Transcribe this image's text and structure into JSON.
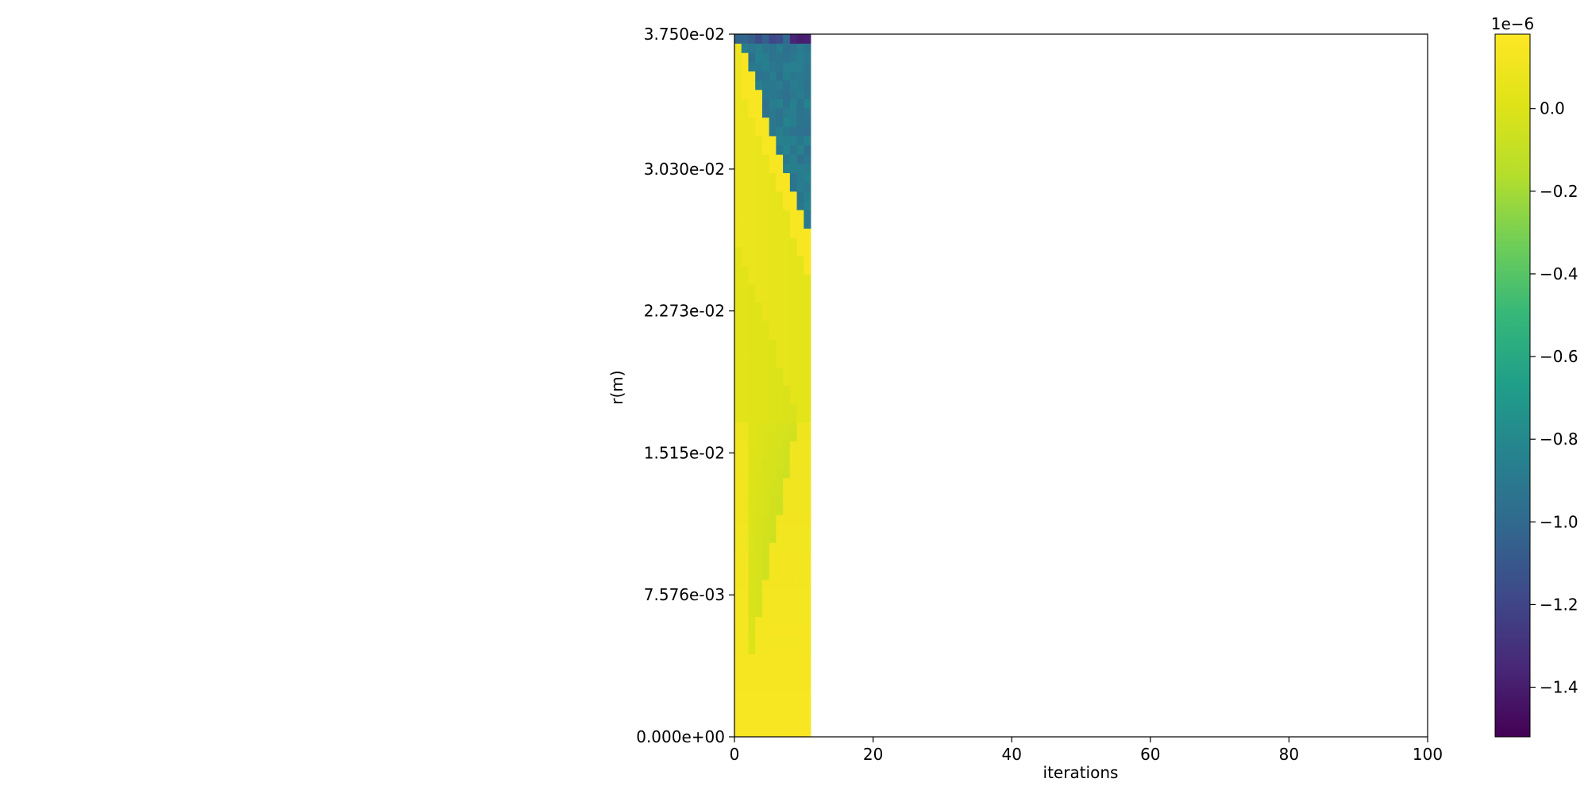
{
  "chart_data": {
    "type": "heatmap",
    "xlabel": "iterations",
    "ylabel": "r(m)",
    "xlim": [
      0,
      100
    ],
    "ylim": [
      0,
      0.0375
    ],
    "x_ticks": [
      0,
      20,
      40,
      60,
      80,
      100
    ],
    "x_tick_labels": [
      "0",
      "20",
      "40",
      "60",
      "80",
      "100"
    ],
    "y_ticks": [
      0,
      0.007576,
      0.01515,
      0.02273,
      0.0303,
      0.0375
    ],
    "y_tick_labels": [
      "0.000e+00",
      "7.576e-03",
      "1.515e-02",
      "2.273e-02",
      "3.030e-02",
      "3.750e-02"
    ],
    "grid": false,
    "filled_iterations": [
      0,
      11
    ],
    "n_cells_x": 11,
    "n_cells_r": 76,
    "colormap": "viridis",
    "colorbar": {
      "multiplier_label": "1e−6",
      "range": [
        -1.52,
        0.18
      ],
      "ticks": [
        0.0,
        -0.2,
        -0.4,
        -0.6,
        -0.8,
        -1.0,
        -1.2,
        -1.4
      ],
      "tick_labels": [
        "0.0",
        "−0.2",
        "−0.4",
        "−0.6",
        "−0.8",
        "−1.0",
        "−1.2",
        "−1.4"
      ]
    },
    "value_regions": [
      {
        "region": "background (lower-left wedge)",
        "value": 0.03
      },
      {
        "region": "bright band along front",
        "value": 0.15
      },
      {
        "region": "mid wedge",
        "value": -0.2
      },
      {
        "region": "upper-right (above front)",
        "value": -0.9
      },
      {
        "region": "top rows",
        "value": -1.2
      }
    ]
  }
}
